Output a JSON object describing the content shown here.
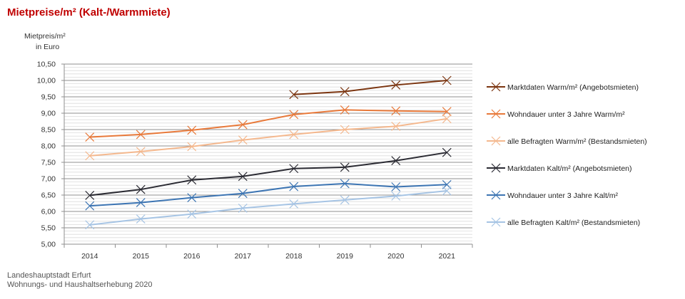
{
  "title": "Mietpreise/m² (Kalt-/Warmmiete)",
  "footer": [
    "Landeshauptstadt Erfurt",
    "Wohnungs- und Haushaltserhebung 2020"
  ],
  "chart_data": {
    "type": "line",
    "ylabel": [
      "Mietpreis/m²",
      "in Euro"
    ],
    "xlabel": "",
    "categories": [
      "2014",
      "2015",
      "2016",
      "2017",
      "2018",
      "2019",
      "2020",
      "2021"
    ],
    "ylim": [
      5.0,
      10.5
    ],
    "yticks": [
      "5,00",
      "5,50",
      "6,00",
      "6,50",
      "7,00",
      "7,50",
      "8,00",
      "8,50",
      "9,00",
      "9,50",
      "10,00",
      "10,50"
    ],
    "grid": true,
    "legend_position": "right",
    "series": [
      {
        "name": "Marktdaten Warm/m² (Angebotsmieten)",
        "color": "#7b3510",
        "marker": "x",
        "values": [
          null,
          null,
          null,
          null,
          9.57,
          9.66,
          9.86,
          10.0
        ]
      },
      {
        "name": "Wohndauer unter 3 Jahre Warm/m²",
        "color": "#e8793a",
        "marker": "x",
        "values": [
          8.27,
          8.35,
          8.48,
          8.65,
          8.96,
          9.1,
          9.07,
          9.05
        ]
      },
      {
        "name": "alle Befragten  Warm/m² (Bestandsmieten)",
        "color": "#f4b88e",
        "marker": "x",
        "values": [
          7.7,
          7.83,
          7.98,
          8.18,
          8.35,
          8.5,
          8.6,
          8.83
        ]
      },
      {
        "name": "Marktdaten Kalt/m² (Angebotsmieten)",
        "color": "#2b2b33",
        "marker": "x",
        "values": [
          6.49,
          6.67,
          6.96,
          7.07,
          7.31,
          7.35,
          7.55,
          7.8
        ]
      },
      {
        "name": "Wohndauer unter 3 Jahre Kalt/m²",
        "color": "#3d75b3",
        "marker": "x",
        "values": [
          6.17,
          6.27,
          6.42,
          6.55,
          6.76,
          6.85,
          6.75,
          6.82
        ]
      },
      {
        "name": "alle Befragten  Kalt/m² (Bestandsmieten)",
        "color": "#a6c4e4",
        "marker": "x",
        "values": [
          5.59,
          5.77,
          5.92,
          6.1,
          6.23,
          6.35,
          6.47,
          6.63
        ]
      }
    ]
  }
}
